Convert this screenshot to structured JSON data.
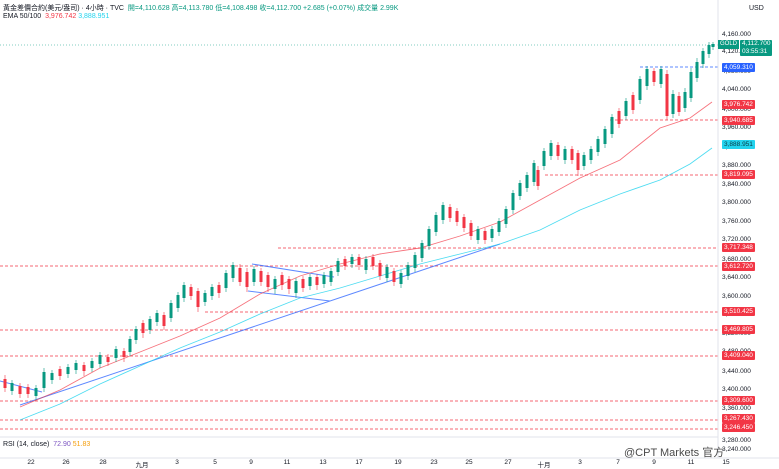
{
  "header": {
    "symbol": "黃金差價合約(美元/盎司) · 4小時 · TVC",
    "ohlc": "開=4,110.628 高=4,113.780 低=4,108.498 收=4,112.700 +2.685 (+0.07%) 成交量 2.99K",
    "ema_label": "EMA 50/100",
    "ema50": "3,976.742",
    "ema100": "3,888.951"
  },
  "rsi": {
    "label": "RSI (14, close)",
    "v1": "72.90",
    "v2": "51.83"
  },
  "price_axis": {
    "currency": "USD",
    "ticks": [
      "4,160.000",
      "4,120.000",
      "4,080.000",
      "4,040.000",
      "4,000.000",
      "3,960.000",
      "3,920.000",
      "3,880.000",
      "3,840.000",
      "3,800.000",
      "3,760.000",
      "3,720.000",
      "3,680.000",
      "3,640.000",
      "3,600.000",
      "3,560.000",
      "3,520.000",
      "3,480.000",
      "3,440.000",
      "3,400.000",
      "3,360.000",
      "3,320.000",
      "3,280.000",
      "3,240.000"
    ],
    "gold_tag": "GOLD",
    "current_price": "4,112.700",
    "countdown": "03:55:31",
    "badges": [
      {
        "text": "4,059.310",
        "color": "#2962ff"
      },
      {
        "text": "3,976.742",
        "color": "#f23645"
      },
      {
        "text": "3,940.685",
        "color": "#f23645"
      },
      {
        "text": "3,888.951",
        "color": "#22d3ee"
      },
      {
        "text": "3,819.095",
        "color": "#f23645"
      },
      {
        "text": "3,717.348",
        "color": "#f23645"
      },
      {
        "text": "3,612.720",
        "color": "#f23645"
      },
      {
        "text": "3,510.425",
        "color": "#f23645"
      },
      {
        "text": "3,469.805",
        "color": "#f23645"
      },
      {
        "text": "3,409.040",
        "color": "#f23645"
      },
      {
        "text": "3,309.600",
        "color": "#f23645"
      },
      {
        "text": "3,267.430",
        "color": "#f23645"
      },
      {
        "text": "3,246.450",
        "color": "#f23645"
      }
    ]
  },
  "time_axis": [
    "22",
    "26",
    "28",
    "九月",
    "3",
    "5",
    "9",
    "11",
    "13",
    "17",
    "19",
    "23",
    "25",
    "27",
    "十月",
    "3",
    "7",
    "9",
    "11",
    "15"
  ],
  "watermark": "@CPT Markets 官方",
  "colors": {
    "up": "#089981",
    "down": "#f23645",
    "ema50": "#f23645",
    "ema100": "#22d3ee",
    "trend": "#2962ff"
  }
}
